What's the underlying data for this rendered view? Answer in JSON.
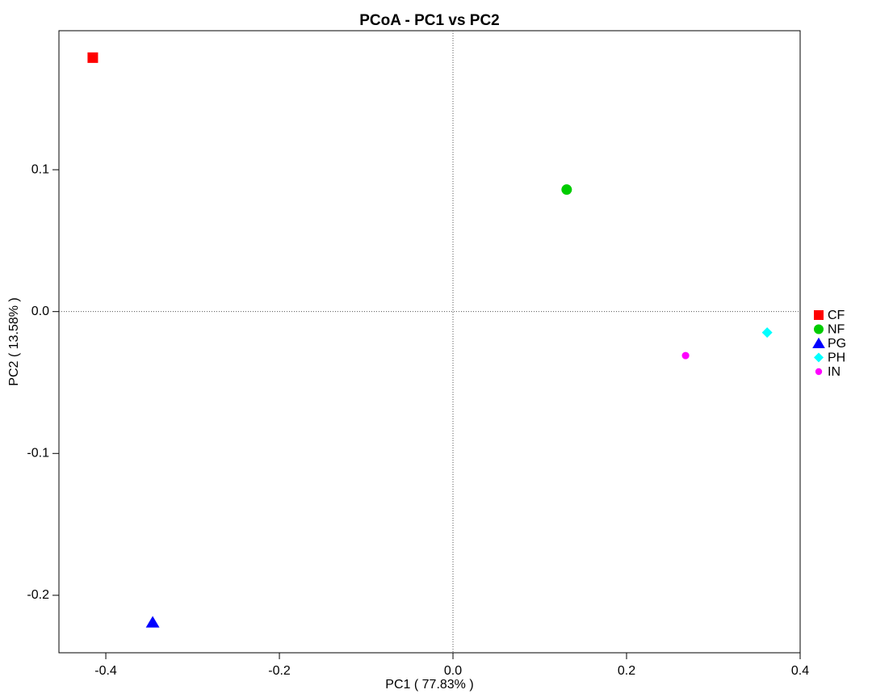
{
  "chart_data": {
    "type": "scatter",
    "title": "PCoA - PC1 vs PC2",
    "x_label": "PC1 ( 77.83% )",
    "y_label": "PC2 ( 13.58% )",
    "xlim": [
      -0.454,
      0.4
    ],
    "ylim": [
      -0.2405,
      0.198
    ],
    "xticks": [
      -0.4,
      -0.2,
      {
        "value": 0,
        "label": "0.0"
      },
      0.2,
      0.4
    ],
    "yticks": [
      -0.2,
      -0.1,
      {
        "value": 0,
        "label": "0.0"
      },
      0.1
    ],
    "zero_lines": true,
    "legend": "right",
    "series": [
      {
        "name": "CF",
        "color": "#ff0000",
        "marker": "square",
        "x": [
          -0.415
        ],
        "values": [
          0.179
        ]
      },
      {
        "name": "NF",
        "color": "#00cc00",
        "marker": "circle",
        "x": [
          0.131
        ],
        "values": [
          0.086
        ]
      },
      {
        "name": "PG",
        "color": "#0000ff",
        "marker": "triangle",
        "x": [
          -0.346
        ],
        "values": [
          -0.219
        ]
      },
      {
        "name": "PH",
        "color": "#00ffff",
        "marker": "diamond",
        "x": [
          0.362
        ],
        "values": [
          -0.0148
        ]
      },
      {
        "name": "IN",
        "color": "#ff00ff",
        "marker": "dot",
        "x": [
          0.268
        ],
        "values": [
          -0.031
        ]
      }
    ]
  }
}
